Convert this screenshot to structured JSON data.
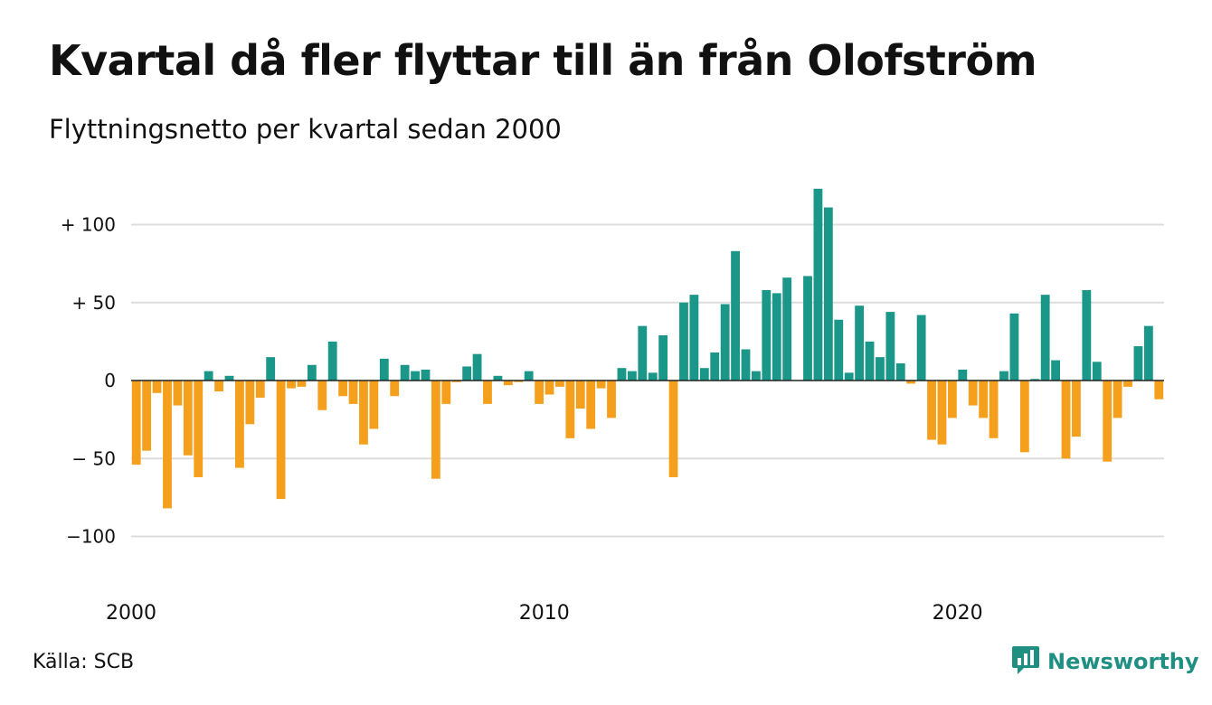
{
  "title": "Kvartal då fler flyttar till än från Olofström",
  "subtitle": "Flyttningsnetto per kvartal sedan 2000",
  "source": "Källa: SCB",
  "brand": "Newsworthy",
  "colors": {
    "positive": "#1a9788",
    "negative": "#f5a01d",
    "grid": "#dddddd",
    "axis": "#222222",
    "brand": "#1f8f82"
  },
  "chart_data": {
    "type": "bar",
    "title": "Kvartal då fler flyttar till än från Olofström",
    "subtitle": "Flyttningsnetto per kvartal sedan 2000",
    "xlabel": "",
    "ylabel": "",
    "ylim": [
      -130,
      130
    ],
    "yticks": [
      {
        "value": 100,
        "label": "+ 100"
      },
      {
        "value": 50,
        "label": "+  50"
      },
      {
        "value": 0,
        "label": "0"
      },
      {
        "value": -50,
        "label": "− 50"
      },
      {
        "value": -100,
        "label": "−100"
      }
    ],
    "xticks": [
      {
        "index": 0,
        "label": "2000"
      },
      {
        "index": 40,
        "label": "2010"
      },
      {
        "index": 80,
        "label": "2020"
      }
    ],
    "grid": true,
    "start": "2000 Q1",
    "values": [
      -54,
      -45,
      -8,
      -82,
      -16,
      -48,
      -62,
      6,
      -7,
      3,
      -56,
      -28,
      -11,
      15,
      -76,
      -5,
      -4,
      10,
      -19,
      25,
      -10,
      -15,
      -41,
      -31,
      14,
      -10,
      10,
      6,
      7,
      -63,
      -15,
      -1,
      9,
      17,
      -15,
      3,
      -3,
      -1,
      6,
      -15,
      -9,
      -4,
      -37,
      -18,
      -31,
      -5,
      -24,
      8,
      6,
      35,
      5,
      29,
      -62,
      50,
      55,
      8,
      18,
      49,
      83,
      20,
      6,
      58,
      56,
      66,
      0,
      67,
      123,
      111,
      39,
      5,
      48,
      25,
      15,
      44,
      11,
      -2,
      42,
      -38,
      -41,
      -24,
      7,
      -16,
      -24,
      -37,
      6,
      43,
      -46,
      1,
      55,
      13,
      -50,
      -36,
      58,
      12,
      -52,
      -24,
      -4,
      22,
      35,
      -12
    ]
  }
}
